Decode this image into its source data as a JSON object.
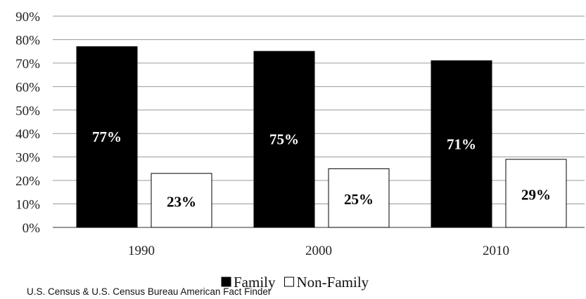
{
  "chart_data": {
    "type": "bar",
    "categories": [
      "1990",
      "2000",
      "2010"
    ],
    "series": [
      {
        "name": "Family",
        "values": [
          77,
          75,
          71
        ],
        "color": "#000000",
        "labels": [
          "77%",
          "75%",
          "71%"
        ]
      },
      {
        "name": "Non-Family",
        "values": [
          23,
          25,
          29
        ],
        "color": "#ffffff",
        "labels": [
          "23%",
          "25%",
          "29%"
        ]
      }
    ],
    "ylim": [
      0,
      90
    ],
    "yticks": [
      "0%",
      "10%",
      "20%",
      "30%",
      "40%",
      "50%",
      "60%",
      "70%",
      "80%",
      "90%"
    ],
    "grid": true,
    "legend_position": "bottom"
  },
  "source": "U.S. Census & U.S. Census Bureau American Fact Finder"
}
